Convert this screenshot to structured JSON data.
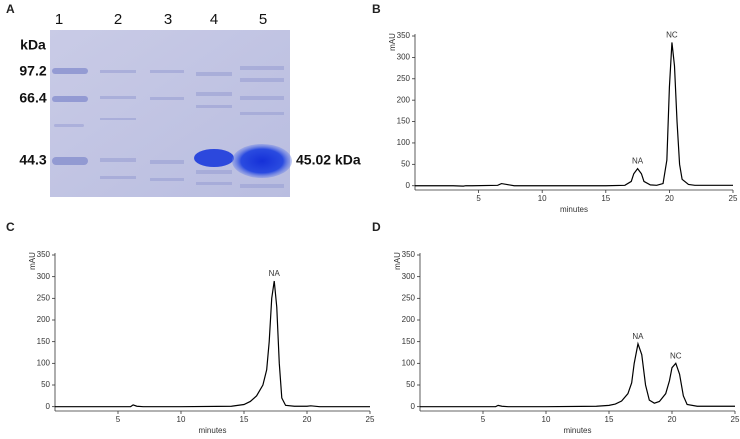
{
  "panel_labels": [
    "A",
    "B",
    "C",
    "D"
  ],
  "gel": {
    "lanes": [
      "1",
      "2",
      "3",
      "4",
      "5"
    ],
    "unit": "kDa",
    "markers": [
      "97.2",
      "66.4",
      "44.3"
    ],
    "band_label": "45.02 kDa"
  },
  "chart_data": [
    {
      "type": "line",
      "xlabel": "minutes",
      "ylabel": "mAU",
      "xlim": [
        0,
        25
      ],
      "ylim": [
        -10,
        350
      ],
      "xticks": [
        5,
        10,
        15,
        20,
        25
      ],
      "yticks": [
        0,
        50,
        100,
        150,
        200,
        250,
        300,
        350
      ],
      "color": "#000000",
      "x": [
        0,
        3,
        3.8,
        4,
        4.5,
        6.5,
        6.8,
        7.2,
        7.8,
        10,
        15,
        16.5,
        17,
        17.2,
        17.5,
        17.8,
        18,
        18.5,
        19,
        19.5,
        19.8,
        20,
        20.2,
        20.4,
        20.6,
        20.8,
        21,
        21.5,
        22,
        25
      ],
      "values": [
        0,
        0,
        -1,
        0,
        0,
        1,
        5,
        3,
        0,
        0,
        0,
        1,
        10,
        28,
        40,
        28,
        10,
        2,
        1,
        5,
        60,
        230,
        335,
        280,
        150,
        50,
        15,
        3,
        1,
        1
      ],
      "annotations": [
        {
          "text": "NA",
          "x": 17.5
        },
        {
          "text": "NC",
          "x": 20.2
        }
      ]
    },
    {
      "type": "line",
      "xlabel": "minutes",
      "ylabel": "mAU",
      "xlim": [
        0,
        25
      ],
      "ylim": [
        -10,
        350
      ],
      "xticks": [
        5,
        10,
        15,
        20,
        25
      ],
      "yticks": [
        0,
        50,
        100,
        150,
        200,
        250,
        300,
        350
      ],
      "color": "#000000",
      "x": [
        0,
        6,
        6.2,
        6.5,
        7,
        10,
        14,
        15,
        15.5,
        16,
        16.5,
        16.8,
        17,
        17.2,
        17.4,
        17.6,
        17.8,
        18,
        18.3,
        19,
        20,
        20.3,
        21,
        25
      ],
      "values": [
        0,
        0,
        4,
        1,
        0,
        0,
        1,
        5,
        12,
        25,
        50,
        85,
        150,
        250,
        290,
        230,
        100,
        20,
        3,
        1,
        1,
        2,
        0,
        0
      ],
      "annotations": [
        {
          "text": "NA",
          "x": 17.4
        }
      ]
    },
    {
      "type": "line",
      "xlabel": "minutes",
      "ylabel": "mAU",
      "xlim": [
        0,
        25
      ],
      "ylim": [
        -10,
        350
      ],
      "xticks": [
        5,
        10,
        15,
        20,
        25
      ],
      "yticks": [
        0,
        50,
        100,
        150,
        200,
        250,
        300,
        350
      ],
      "color": "#000000",
      "x": [
        0,
        6,
        6.2,
        6.5,
        7,
        10,
        14,
        15,
        15.5,
        16,
        16.5,
        16.8,
        17,
        17.3,
        17.6,
        17.9,
        18.2,
        18.6,
        19,
        19.5,
        19.8,
        20,
        20.3,
        20.6,
        20.9,
        21.2,
        22,
        25
      ],
      "values": [
        0,
        0,
        3,
        1,
        0,
        0,
        1,
        3,
        6,
        13,
        30,
        55,
        100,
        145,
        120,
        50,
        15,
        8,
        12,
        30,
        60,
        90,
        100,
        75,
        25,
        5,
        1,
        1
      ],
      "annotations": [
        {
          "text": "NA",
          "x": 17.3
        },
        {
          "text": "NC",
          "x": 20.3
        }
      ]
    }
  ]
}
